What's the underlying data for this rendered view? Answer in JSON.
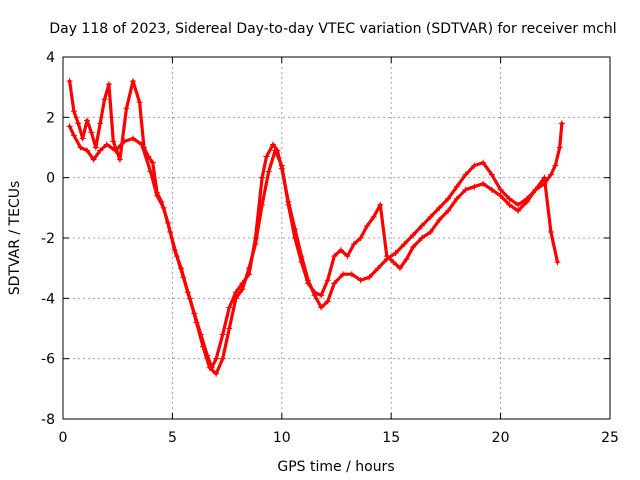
{
  "chart_data": {
    "type": "line",
    "title": "Day 118 of 2023, Sidereal Day-to-day VTEC variation (SDTVAR) for receiver mchl",
    "xlabel": "GPS time / hours",
    "ylabel": "SDTVAR / TECUs",
    "xlim": [
      0,
      25
    ],
    "ylim": [
      -8,
      4
    ],
    "xticks": [
      0,
      5,
      10,
      15,
      20,
      25
    ],
    "yticks": [
      -8,
      -6,
      -4,
      -2,
      0,
      2,
      4
    ],
    "grid": true,
    "legend": "none",
    "series_color": "#ff0000",
    "series": [
      {
        "x": [
          0.3,
          0.5,
          0.7,
          0.9,
          1.1,
          1.3,
          1.5,
          1.7,
          1.9,
          2.1,
          2.3,
          2.6,
          2.9,
          3.2,
          3.5,
          3.7,
          3.9,
          4.1,
          4.3,
          4.5,
          4.8,
          5.1,
          5.4,
          5.7,
          6.0,
          6.3,
          6.6,
          6.8,
          7.0,
          7.3,
          7.6,
          7.9,
          8.2,
          8.5,
          8.8,
          9.1,
          9.3,
          9.6,
          9.8,
          10.0,
          10.3,
          10.6,
          10.9,
          11.2,
          11.5,
          11.8,
          12.1,
          12.4,
          12.8,
          13.2,
          13.6,
          14.0,
          14.4,
          14.8,
          15.2,
          15.6,
          16.0,
          16.4,
          16.8,
          17.2,
          17.6,
          18.0,
          18.4,
          18.8,
          19.2,
          19.6,
          20.0,
          20.4,
          20.8,
          21.2,
          21.6,
          22.0,
          22.3,
          22.5,
          22.7,
          22.8
        ],
        "y": [
          3.2,
          2.2,
          1.8,
          1.3,
          1.9,
          1.5,
          1.0,
          1.8,
          2.6,
          3.1,
          1.2,
          0.6,
          2.3,
          3.2,
          2.5,
          1.0,
          0.7,
          0.5,
          -0.5,
          -0.8,
          -1.5,
          -2.4,
          -3.0,
          -3.8,
          -4.5,
          -5.2,
          -5.9,
          -6.3,
          -6.0,
          -5.2,
          -4.3,
          -3.8,
          -3.5,
          -3.2,
          -2.0,
          0.0,
          0.7,
          1.1,
          0.9,
          0.3,
          -0.8,
          -1.7,
          -2.6,
          -3.4,
          -3.9,
          -4.3,
          -4.1,
          -3.5,
          -3.2,
          -3.2,
          -3.4,
          -3.3,
          -3.0,
          -2.7,
          -2.5,
          -2.2,
          -1.9,
          -1.6,
          -1.3,
          -1.0,
          -0.7,
          -0.3,
          0.1,
          0.4,
          0.5,
          0.1,
          -0.4,
          -0.7,
          -0.9,
          -0.7,
          -0.4,
          -0.2,
          0.1,
          0.4,
          1.0,
          1.8
        ]
      },
      {
        "x": [
          0.3,
          0.5,
          0.8,
          1.1,
          1.4,
          1.7,
          2.0,
          2.4,
          2.8,
          3.2,
          3.6,
          4.0,
          4.3,
          4.6,
          4.9,
          5.2,
          5.5,
          5.8,
          6.1,
          6.4,
          6.7,
          7.0,
          7.3,
          7.6,
          7.9,
          8.2,
          8.5,
          8.8,
          9.1,
          9.4,
          9.7,
          10.0,
          10.3,
          10.6,
          10.9,
          11.2,
          11.5,
          11.8,
          12.1,
          12.4,
          12.7,
          13.0,
          13.3,
          13.6,
          13.9,
          14.2,
          14.5,
          14.8,
          15.1,
          15.4,
          15.7,
          16.0,
          16.4,
          16.8,
          17.2,
          17.6,
          18.0,
          18.4,
          18.8,
          19.2,
          19.6,
          20.0,
          20.4,
          20.8,
          21.2,
          21.6,
          22.0,
          22.3,
          22.6
        ],
        "y": [
          1.7,
          1.4,
          1.0,
          0.9,
          0.6,
          0.9,
          1.1,
          0.9,
          1.2,
          1.3,
          1.1,
          0.2,
          -0.6,
          -1.0,
          -1.8,
          -2.6,
          -3.3,
          -4.0,
          -4.8,
          -5.6,
          -6.3,
          -6.5,
          -6.0,
          -5.0,
          -4.0,
          -3.7,
          -3.0,
          -2.2,
          -0.9,
          0.2,
          0.9,
          0.4,
          -0.9,
          -2.0,
          -2.8,
          -3.5,
          -3.8,
          -3.9,
          -3.4,
          -2.6,
          -2.4,
          -2.6,
          -2.2,
          -2.0,
          -1.6,
          -1.3,
          -0.9,
          -2.6,
          -2.8,
          -3.0,
          -2.7,
          -2.3,
          -2.0,
          -1.8,
          -1.4,
          -1.1,
          -0.7,
          -0.4,
          -0.3,
          -0.2,
          -0.4,
          -0.6,
          -0.9,
          -1.1,
          -0.8,
          -0.4,
          0.0,
          -1.8,
          -2.8
        ]
      }
    ]
  }
}
